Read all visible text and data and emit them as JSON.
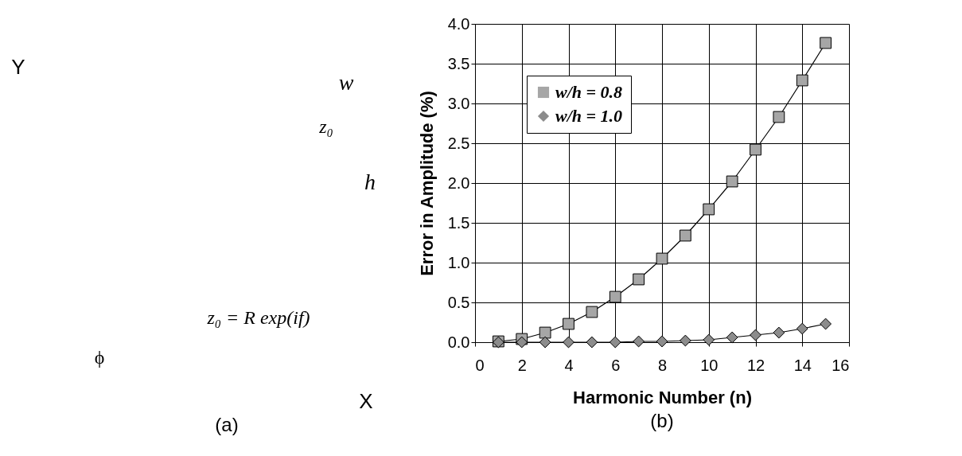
{
  "chart_data": [
    {
      "type": "other",
      "annotations": [
        "Y",
        "X",
        "w",
        "h",
        "z₀",
        "ϕ",
        "z₀ = R exp(if)",
        "(a)"
      ]
    },
    {
      "type": "line",
      "xlabel": "Harmonic Number (n)",
      "ylabel": "Error in Amplitude (%)",
      "annotations": [
        "(b)"
      ],
      "x": [
        1,
        2,
        3,
        4,
        5,
        6,
        7,
        8,
        9,
        10,
        11,
        12,
        13,
        14,
        15
      ],
      "series": [
        {
          "name": "w/h = 0.8",
          "color": "#a6a6a6",
          "marker": "square",
          "values": [
            0.01,
            0.04,
            0.12,
            0.23,
            0.38,
            0.57,
            0.79,
            1.05,
            1.34,
            1.67,
            2.02,
            2.42,
            2.83,
            3.29,
            3.76
          ]
        },
        {
          "name": "w/h = 1.0",
          "color": "#8c8c8c",
          "marker": "diamond",
          "values": [
            0,
            0,
            0,
            0,
            0,
            0,
            0.01,
            0.01,
            0.02,
            0.03,
            0.06,
            0.09,
            0.12,
            0.17,
            0.23
          ]
        }
      ],
      "xlim": [
        0,
        16
      ],
      "xticks": [
        0,
        2,
        4,
        6,
        8,
        10,
        12,
        14,
        16
      ],
      "ylim": [
        0,
        4
      ],
      "yticks": [
        {
          "value": 0,
          "label": "0.0"
        },
        {
          "value": 0.5,
          "label": "0.5"
        },
        {
          "value": 1,
          "label": "1.0"
        },
        {
          "value": 1.5,
          "label": "1.5"
        },
        {
          "value": 2,
          "label": "2.0"
        },
        {
          "value": 2.5,
          "label": "2.5"
        },
        {
          "value": 3,
          "label": "3.0"
        },
        {
          "value": 3.5,
          "label": "3.5"
        },
        {
          "value": 4,
          "label": "4.0"
        }
      ],
      "grid": true,
      "legend": "top left",
      "line_style": "solid"
    }
  ]
}
